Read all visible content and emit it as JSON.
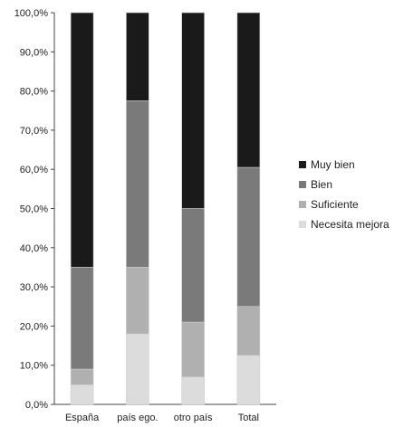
{
  "chart_data": {
    "type": "bar",
    "stacked": true,
    "percent": true,
    "categories": [
      "España",
      "país ego.",
      "otro país",
      "Total"
    ],
    "series": [
      {
        "name": "Necesita mejora",
        "color": "#dcdcdc",
        "values": [
          5.0,
          18.0,
          7.0,
          12.5
        ]
      },
      {
        "name": "Suficiente",
        "color": "#b0b0b0",
        "values": [
          4.0,
          17.0,
          14.0,
          12.5
        ]
      },
      {
        "name": "Bien",
        "color": "#7a7a7a",
        "values": [
          26.0,
          42.5,
          29.0,
          35.5
        ]
      },
      {
        "name": "Muy bien",
        "color": "#1a1a1a",
        "values": [
          65.0,
          22.5,
          50.0,
          39.5
        ]
      }
    ],
    "yticks": [
      "0,0%",
      "10,0%",
      "20,0%",
      "30,0%",
      "40,0%",
      "50,0%",
      "60,0%",
      "70,0%",
      "80,0%",
      "90,0%",
      "100,0%"
    ],
    "ylim": [
      0,
      100
    ],
    "grid": false,
    "legend": {
      "position": "right",
      "order": [
        "Muy bien",
        "Bien",
        "Suficiente",
        "Necesita mejora"
      ]
    }
  }
}
